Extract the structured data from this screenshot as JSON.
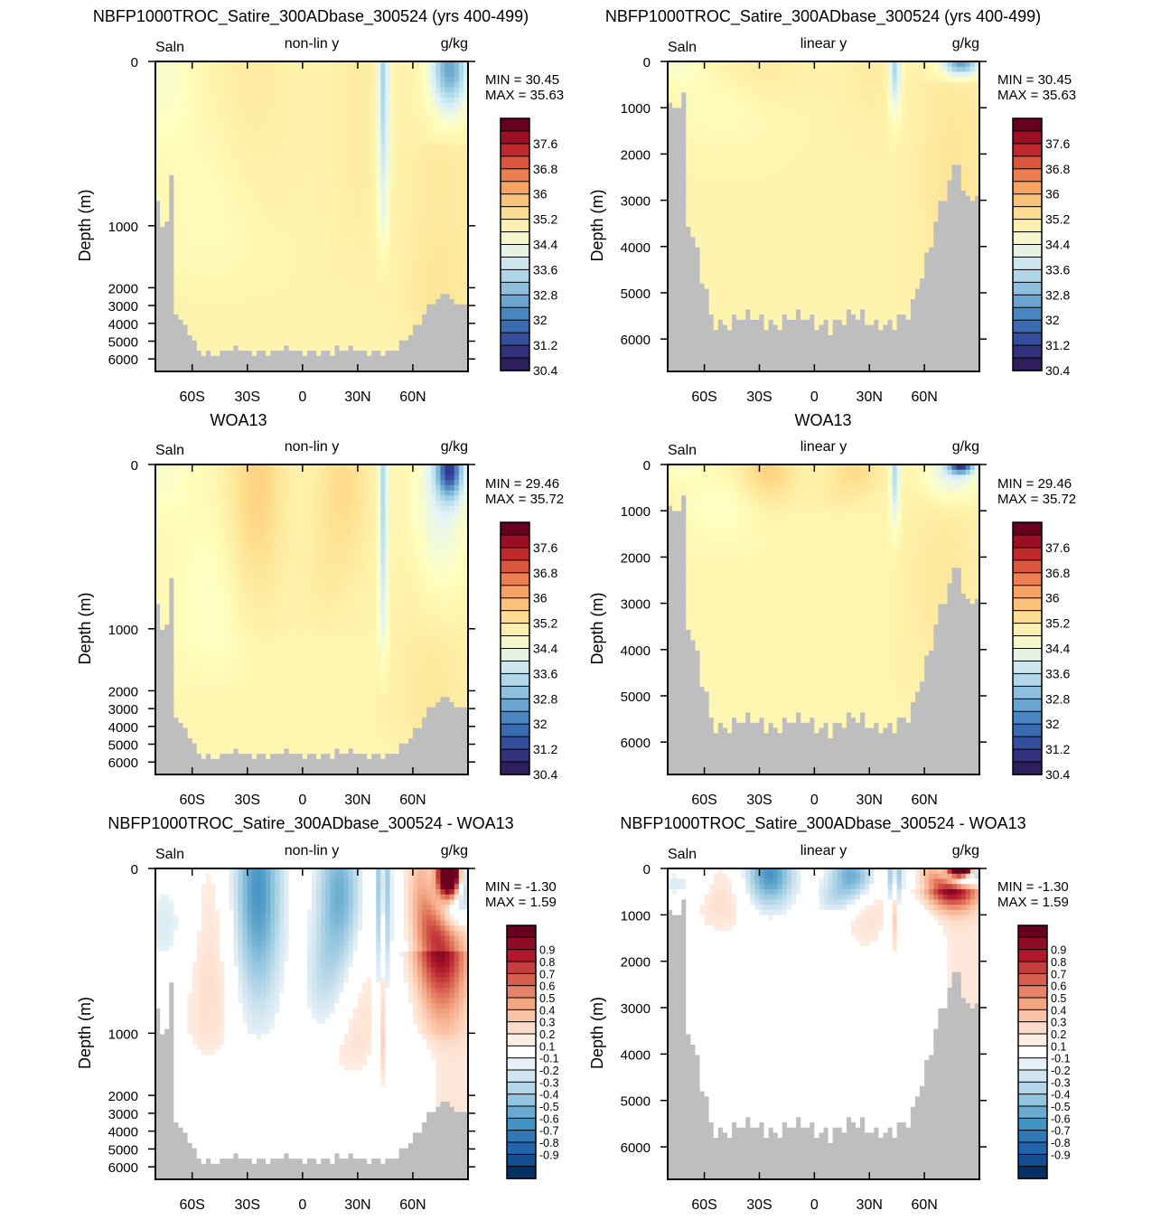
{
  "figure": {
    "panels": [
      {
        "title": "NBFP1000TROC_Satire_300ADbase_300524 (yrs 400-499)",
        "left_label": "Saln",
        "center_label": "non-lin y",
        "right_label": "g/kg",
        "ylabel": "Depth (m)",
        "scale": "nonlinear",
        "field": "model",
        "stats": {
          "min": "MIN =  30.45",
          "max": "MAX =  35.63"
        },
        "colorbar": "abs"
      },
      {
        "title": "NBFP1000TROC_Satire_300ADbase_300524 (yrs 400-499)",
        "left_label": "Saln",
        "center_label": "linear y",
        "right_label": "g/kg",
        "ylabel": "Depth (m)",
        "scale": "linear",
        "field": "model",
        "stats": {
          "min": "MIN =  30.45",
          "max": "MAX =  35.63"
        },
        "colorbar": "abs"
      },
      {
        "title": "WOA13",
        "left_label": "Saln",
        "center_label": "non-lin y",
        "right_label": "g/kg",
        "ylabel": "Depth (m)",
        "scale": "nonlinear",
        "field": "obs",
        "stats": {
          "min": "MIN =  29.46",
          "max": "MAX =  35.72"
        },
        "colorbar": "abs"
      },
      {
        "title": "WOA13",
        "left_label": "Saln",
        "center_label": "linear y",
        "right_label": "g/kg",
        "ylabel": "Depth (m)",
        "scale": "linear",
        "field": "obs",
        "stats": {
          "min": "MIN =  29.46",
          "max": "MAX =  35.72"
        },
        "colorbar": "abs"
      },
      {
        "title": "NBFP1000TROC_Satire_300ADbase_300524 - WOA13",
        "left_label": "Saln",
        "center_label": "non-lin y",
        "right_label": "g/kg",
        "ylabel": "Depth (m)",
        "scale": "nonlinear",
        "field": "diff",
        "stats": {
          "min": "MIN =  -1.30",
          "max": "MAX =   1.59"
        },
        "colorbar": "diff"
      },
      {
        "title": "NBFP1000TROC_Satire_300ADbase_300524 - WOA13",
        "left_label": "Saln",
        "center_label": "linear y",
        "right_label": "g/kg",
        "ylabel": "Depth (m)",
        "scale": "linear",
        "field": "diff",
        "stats": {
          "min": "MIN =  -1.30",
          "max": "MAX =   1.59"
        },
        "colorbar": "diff"
      }
    ]
  },
  "chart_data": {
    "type": "heatmap",
    "x_ticks": [
      "60S",
      "30S",
      "0",
      "30N",
      "60N"
    ],
    "x_tick_values": [
      -60,
      -30,
      0,
      30,
      60
    ],
    "xlim": [
      -80,
      90
    ],
    "y_ticks_nonlinear": [
      "0",
      "1000",
      "2000",
      "3000",
      "4000",
      "5000",
      "6000"
    ],
    "y_ticks_linear": [
      "0",
      "1000",
      "2000",
      "3000",
      "4000",
      "5000",
      "6000"
    ],
    "ylim": [
      0,
      6700
    ],
    "colorbars": {
      "abs": {
        "labels": [
          "37.6",
          "36.8",
          "36",
          "35.2",
          "34.4",
          "33.6",
          "32.8",
          "32",
          "31.2",
          "30.4"
        ],
        "colors": [
          "#67001f",
          "#9d0f25",
          "#c0292c",
          "#d9553d",
          "#ec7f52",
          "#f5a262",
          "#f9c27a",
          "#fcdb93",
          "#fdefb0",
          "#f7f7cd",
          "#e4f2e4",
          "#cfe6ef",
          "#b2d6e9",
          "#8fbfde",
          "#6aa4d0",
          "#4a87c0",
          "#3a6ab0",
          "#354e9b",
          "#32327c",
          "#2d1e5c"
        ]
      },
      "diff": {
        "labels": [
          "0.9",
          "0.8",
          "0.7",
          "0.6",
          "0.5",
          "0.4",
          "0.3",
          "0.2",
          "0.1",
          "-0.1",
          "-0.2",
          "-0.3",
          "-0.4",
          "-0.5",
          "-0.6",
          "-0.7",
          "-0.8",
          "-0.9"
        ],
        "colors": [
          "#67001f",
          "#8e0c25",
          "#b2182b",
          "#c53d3d",
          "#d6604d",
          "#e58267",
          "#f4a582",
          "#f8c3a7",
          "#fbdccb",
          "#fdeee6",
          "#ffffff",
          "#e6eff7",
          "#d1e5f0",
          "#b4d5e8",
          "#92c5de",
          "#6aa9d0",
          "#4393c3",
          "#2f78b4",
          "#2166ac",
          "#134d8f",
          "#053061"
        ]
      }
    }
  }
}
